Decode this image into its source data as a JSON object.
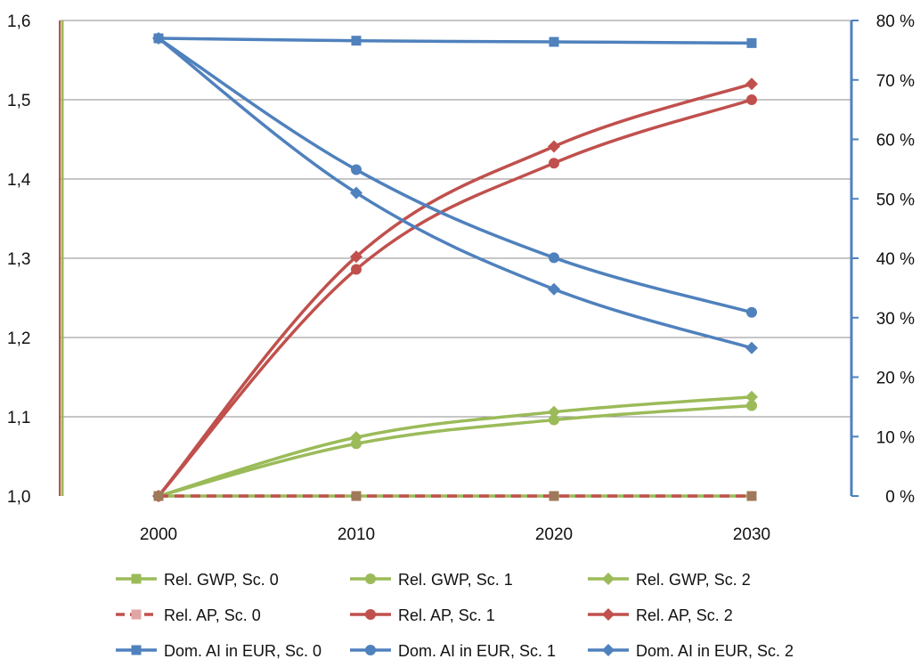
{
  "chart_data": {
    "type": "line",
    "title": "",
    "xlabel": "",
    "ylabel": "",
    "y2label": "",
    "categories": [
      "2000",
      "2010",
      "2020",
      "2030"
    ],
    "y_left": {
      "range": [
        1.0,
        1.6
      ],
      "ticks": [
        "1,0",
        "1,1",
        "1,2",
        "1,3",
        "1,4",
        "1,5",
        "1,6"
      ]
    },
    "y_right": {
      "range": [
        0,
        80
      ],
      "ticks": [
        "0 %",
        "10 %",
        "20 %",
        "30 %",
        "40 %",
        "50 %",
        "60 %",
        "70 %",
        "80 %"
      ]
    },
    "grid": true,
    "legend_position": "bottom",
    "series": [
      {
        "name": "Rel. GWP, Sc. 0",
        "axis": "left",
        "marker": "square",
        "dashed": false,
        "color": "#9BBB59",
        "values": [
          1.0,
          1.0,
          1.0,
          1.0
        ]
      },
      {
        "name": "Rel. GWP, Sc. 1",
        "axis": "left",
        "marker": "circle",
        "dashed": false,
        "color": "#9BBB59",
        "values": [
          1.0,
          1.066,
          1.096,
          1.114
        ]
      },
      {
        "name": "Rel. GWP, Sc. 2",
        "axis": "left",
        "marker": "diamond",
        "dashed": false,
        "color": "#9BBB59",
        "values": [
          1.0,
          1.074,
          1.106,
          1.125
        ]
      },
      {
        "name": "Rel. AP, Sc. 0",
        "axis": "left",
        "marker": "square",
        "dashed": true,
        "color": "#C0504D",
        "values": [
          1.0,
          1.0,
          1.0,
          1.0
        ]
      },
      {
        "name": "Rel. AP, Sc. 1",
        "axis": "left",
        "marker": "circle",
        "dashed": false,
        "color": "#C0504D",
        "values": [
          1.0,
          1.286,
          1.42,
          1.5
        ]
      },
      {
        "name": "Rel. AP, Sc. 2",
        "axis": "left",
        "marker": "diamond",
        "dashed": false,
        "color": "#C0504D",
        "values": [
          1.0,
          1.302,
          1.441,
          1.52
        ]
      },
      {
        "name": "Dom. AI in EUR, Sc. 0",
        "axis": "right",
        "marker": "square",
        "dashed": false,
        "color": "#4F81BD",
        "values": [
          77,
          76.6,
          76.4,
          76.2
        ]
      },
      {
        "name": "Dom. AI in EUR, Sc. 1",
        "axis": "right",
        "marker": "circle",
        "dashed": false,
        "color": "#4F81BD",
        "values": [
          77,
          54.9,
          40.1,
          30.9
        ]
      },
      {
        "name": "Dom. AI in EUR, Sc. 2",
        "axis": "right",
        "marker": "diamond",
        "dashed": false,
        "color": "#4F81BD",
        "values": [
          77,
          51,
          34.8,
          24.9
        ]
      }
    ]
  }
}
